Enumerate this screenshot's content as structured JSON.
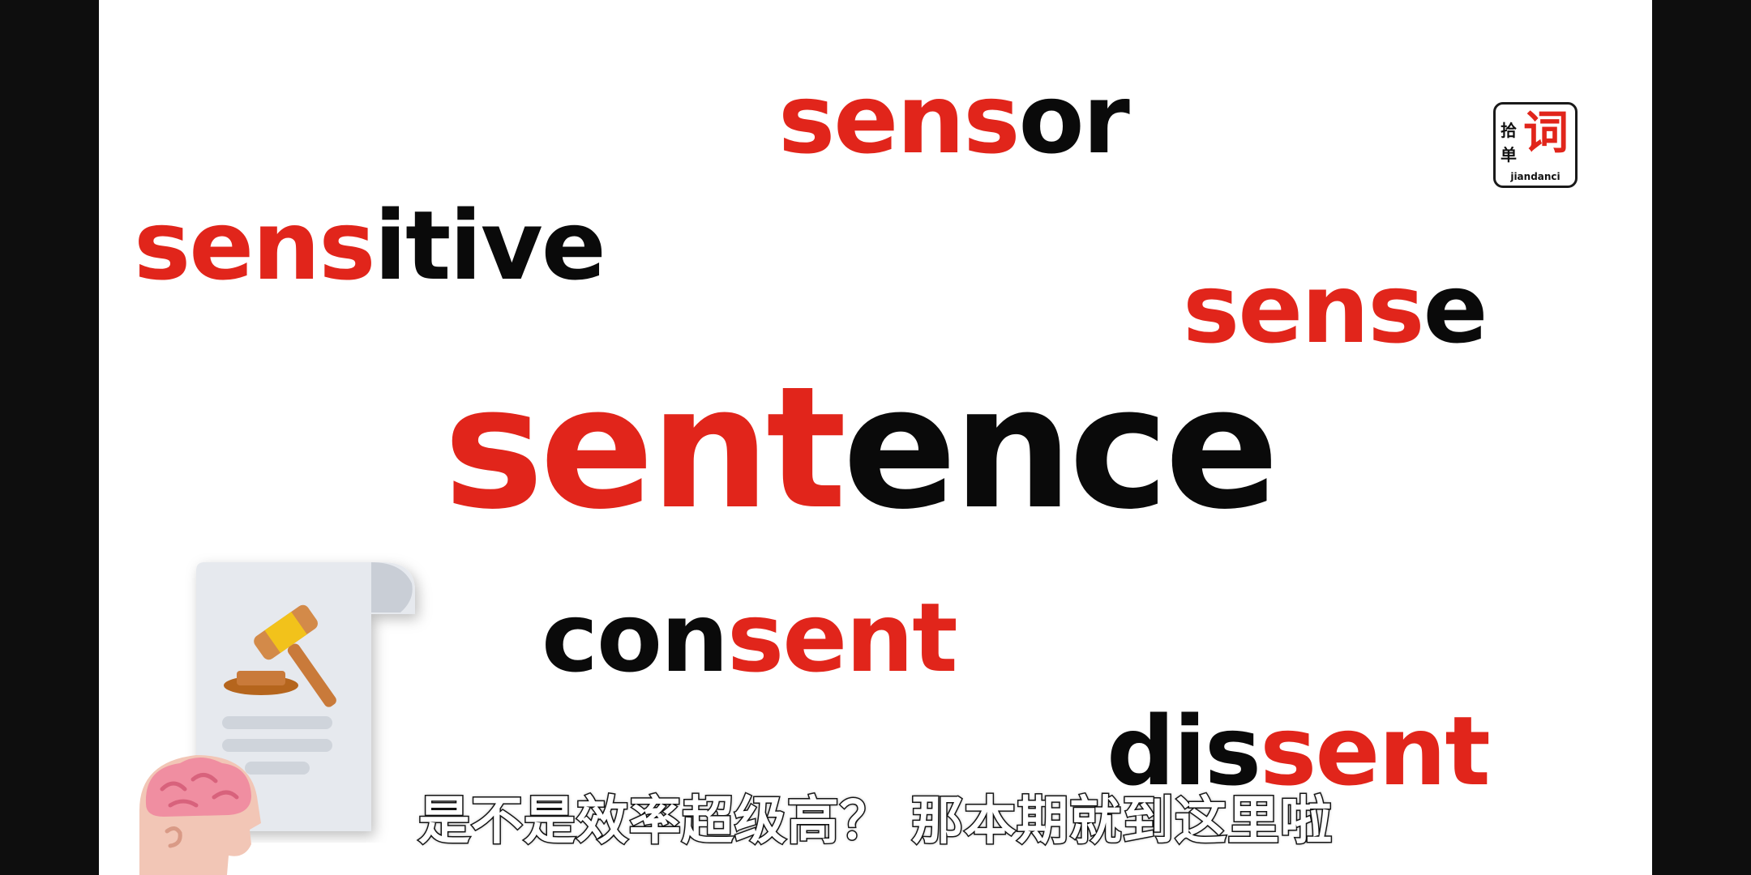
{
  "words": {
    "sensor": {
      "root": "sens",
      "rest": "or"
    },
    "sensitive": {
      "root": "sens",
      "mid": "it",
      "rest": "ive"
    },
    "sense": {
      "root": "sens",
      "rest": "e"
    },
    "sentence": {
      "root": "sent",
      "rest": "ence"
    },
    "consent": {
      "prefix": "con",
      "root": "sent"
    },
    "dissent": {
      "prefix": "dis",
      "root": "sent"
    }
  },
  "logo": {
    "cn_small_1": "拾",
    "cn_small_2": "单",
    "cn_big": "词",
    "latin": "jiandanci"
  },
  "subtitle": "是不是效率超级高？ 那本期就到这里啦",
  "colors": {
    "root": "#e1251b",
    "text": "#0a0a0a",
    "background": "#ffffff",
    "letterbox": "#0e0e0e"
  },
  "icons": [
    "gavel-document-icon",
    "brain-head-icon"
  ]
}
